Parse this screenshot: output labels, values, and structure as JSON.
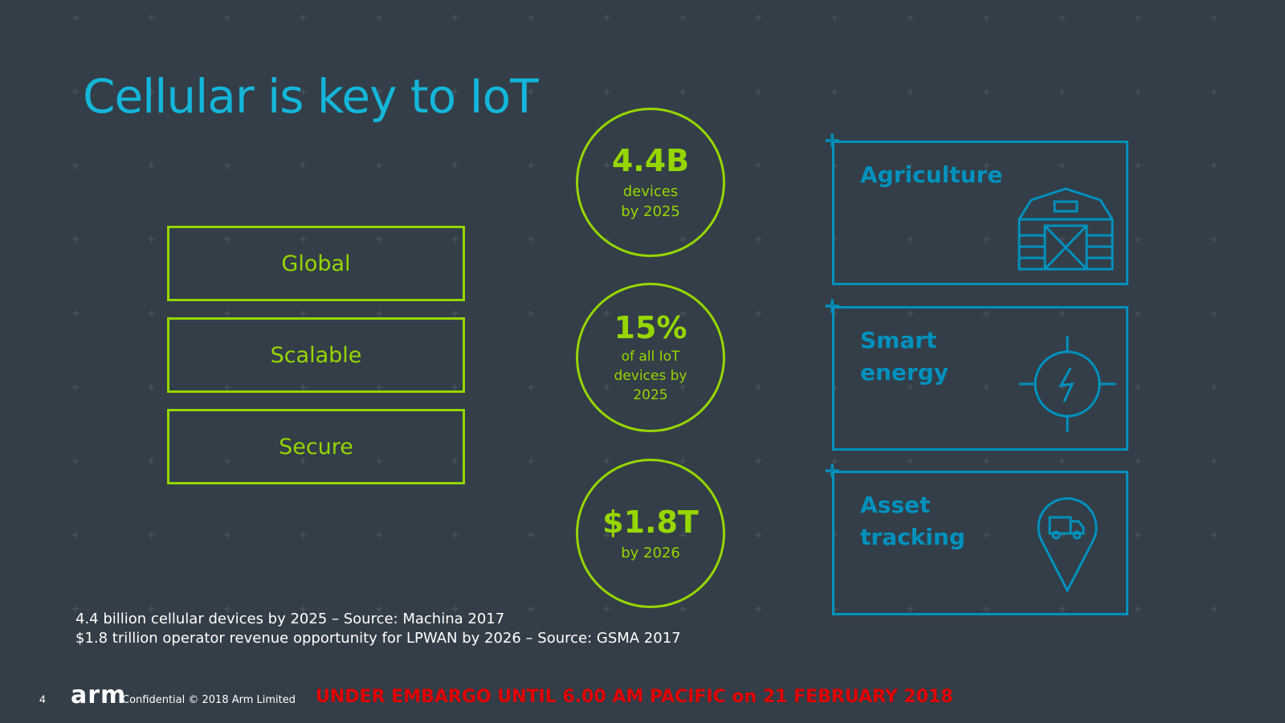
{
  "slide": {
    "title": "Cellular is key to IoT",
    "page_number": "4"
  },
  "pillars": [
    {
      "label": "Global"
    },
    {
      "label": "Scalable"
    },
    {
      "label": "Secure"
    }
  ],
  "stats": [
    {
      "big": "4.4B",
      "lines": [
        "devices",
        "by 2025"
      ]
    },
    {
      "big": "15%",
      "lines": [
        "of all IoT",
        "devices by",
        "2025"
      ]
    },
    {
      "big": "$1.8T",
      "lines": [
        "by 2026"
      ]
    }
  ],
  "use_cases": [
    {
      "label": "Agriculture",
      "icon": "barn-icon"
    },
    {
      "label": "Smart\nenergy",
      "icon": "power-target-icon"
    },
    {
      "label": "Asset\ntracking",
      "icon": "truck-location-pin-icon"
    }
  ],
  "sources": [
    "4.4 billion cellular devices by 2025 – Source: Machina 2017",
    "$1.8 trillion operator revenue opportunity for LPWAN by 2026 – Source: GSMA 2017"
  ],
  "footer": {
    "logo": "arm",
    "confidential": "Confidential © 2018 Arm Limited",
    "embargo": "UNDER EMBARGO UNTIL 6.00 AM PACIFIC on 21 FEBRUARY 2018"
  },
  "colors": {
    "background": "#333e48",
    "title": "#14b6d9",
    "green": "#95d600",
    "blue": "#0091bd",
    "embargo": "#e00000"
  }
}
